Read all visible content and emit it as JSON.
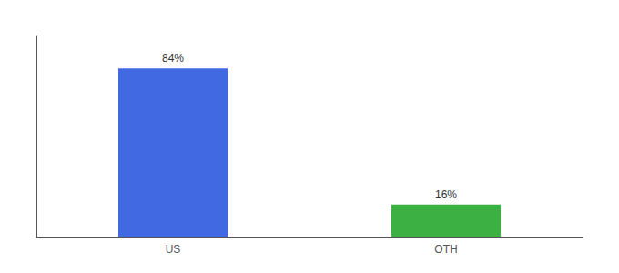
{
  "chart_data": {
    "type": "bar",
    "categories": [
      "US",
      "OTH"
    ],
    "values": [
      84,
      16
    ],
    "colors": [
      "#4169E1",
      "#3CB043"
    ],
    "value_labels": [
      "84%",
      "16%"
    ],
    "data_labels": true,
    "ylim": [
      0,
      100
    ],
    "yticks": [],
    "grid": false,
    "tick_labels": "x"
  }
}
